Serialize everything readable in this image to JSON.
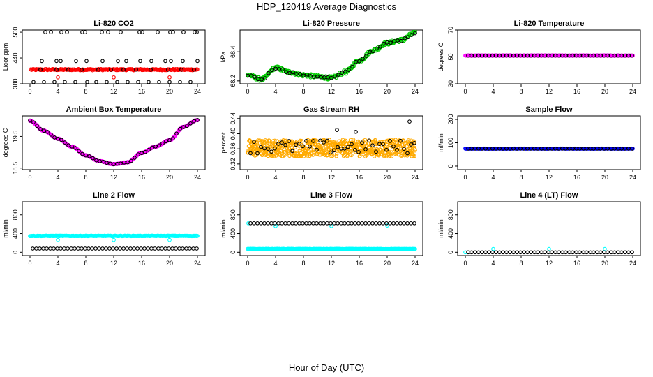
{
  "figure": {
    "title": "HDP_120419  Average Diagnostics",
    "xlabel": "Hour of Day (UTC)"
  },
  "chart_data": [
    {
      "type": "scatter",
      "title": "Li-820 CO2",
      "ylabel": "Licor ppm",
      "xlim": [
        0,
        24
      ],
      "ylim": [
        380,
        505
      ],
      "xticks": [
        0,
        4,
        8,
        12,
        16,
        20,
        24
      ],
      "xtick_labels": [
        "0",
        "4",
        "8",
        "12",
        "16",
        "20",
        "24"
      ],
      "yticks": [
        380,
        440,
        500
      ],
      "ytick_labels": [
        "380",
        "440",
        "500"
      ],
      "series": [
        {
          "color": "#ff0000",
          "kind": "band",
          "x_start": 0.1,
          "x_end": 24,
          "step": 0.12,
          "y": 413,
          "noise": 1.5
        },
        {
          "color": "#ff0000",
          "kind": "points",
          "x": [
            4,
            12,
            20
          ],
          "y": [
            395,
            395,
            395
          ]
        },
        {
          "color": "#000000",
          "kind": "points",
          "x": [
            0.5,
            2,
            3.5,
            5,
            6.5,
            8.2,
            9.5,
            11,
            12.5,
            14,
            15.5,
            17,
            18.5,
            20,
            21.5,
            23,
            1.5,
            3.8,
            5.5,
            7.4,
            9.8,
            11.6,
            13.4,
            15.2,
            17.3,
            19.8,
            21.7,
            23.5,
            2.2,
            3.0,
            4.5,
            5.3,
            7.5,
            7.9,
            10.3,
            11.2,
            13.0,
            15.7,
            16.1,
            18.3,
            20.1,
            20.5,
            22.0,
            23.6,
            23.9
          ],
          "y": [
            384,
            384,
            384,
            384,
            384,
            384,
            384,
            384,
            384,
            384,
            384,
            384,
            384,
            384,
            384,
            384,
            413,
            413,
            413,
            413,
            413,
            413,
            413,
            413,
            413,
            413,
            413,
            413,
            500,
            500,
            500,
            500,
            500,
            500,
            500,
            500,
            500,
            500,
            500,
            500,
            500,
            500,
            500,
            500,
            500
          ]
        },
        {
          "color": "#000000",
          "kind": "points",
          "x": [
            1.7,
            3.8,
            4.4,
            6.6,
            8.1,
            10.4,
            12.6,
            13.8,
            15.8,
            17.4,
            19.4,
            20.2,
            21.9,
            24
          ],
          "y": [
            433,
            433,
            433,
            433,
            433,
            433,
            433,
            433,
            433,
            433,
            433,
            433,
            433,
            433
          ]
        }
      ]
    },
    {
      "type": "scatter",
      "title": "Li-820 Pressure",
      "ylabel": "kPa",
      "xlim": [
        0,
        24
      ],
      "ylim": [
        68.18,
        68.55
      ],
      "xticks": [
        0,
        4,
        8,
        12,
        16,
        20,
        24
      ],
      "xtick_labels": [
        "0",
        "4",
        "8",
        "12",
        "16",
        "20",
        "24"
      ],
      "yticks": [
        68.2,
        68.4
      ],
      "ytick_labels": [
        "68.2",
        "68.4"
      ],
      "series": [
        {
          "color": "#00cc00",
          "kind": "curve",
          "knots_x": [
            0,
            2,
            4,
            6,
            8,
            10,
            12,
            14,
            16,
            18,
            20,
            22,
            24
          ],
          "knots_y": [
            68.24,
            68.21,
            68.29,
            68.26,
            68.24,
            68.23,
            68.22,
            68.26,
            68.34,
            68.41,
            68.46,
            68.48,
            68.53
          ],
          "step": 0.1,
          "noise": 0.012
        },
        {
          "color": "#000000",
          "kind": "curve",
          "knots_x": [
            0,
            2,
            4,
            6,
            8,
            10,
            12,
            14,
            16,
            18,
            20,
            22,
            24
          ],
          "knots_y": [
            68.24,
            68.21,
            68.29,
            68.26,
            68.24,
            68.23,
            68.22,
            68.26,
            68.34,
            68.41,
            68.46,
            68.48,
            68.53
          ],
          "step": 0.5,
          "noise": 0.006
        }
      ]
    },
    {
      "type": "scatter",
      "title": "Li-820 Temperature",
      "ylabel": "degrees C",
      "xlim": [
        0,
        24
      ],
      "ylim": [
        30,
        70
      ],
      "xticks": [
        0,
        4,
        8,
        12,
        16,
        20,
        24
      ],
      "xtick_labels": [
        "0",
        "4",
        "8",
        "12",
        "16",
        "20",
        "24"
      ],
      "yticks": [
        30,
        50,
        70
      ],
      "ytick_labels": [
        "30",
        "50",
        "70"
      ],
      "series": [
        {
          "color": "#ff00ff",
          "kind": "band",
          "x_start": 0,
          "x_end": 24,
          "step": 0.1,
          "y": 51,
          "noise": 0.1
        },
        {
          "color": "#000000",
          "kind": "band",
          "x_start": 0.4,
          "x_end": 24,
          "step": 0.5,
          "y": 51,
          "noise": 0
        }
      ]
    },
    {
      "type": "scatter",
      "title": "Ambient Box Temperature",
      "ylabel": "degrees C",
      "xlim": [
        0,
        24
      ],
      "ylim": [
        18.45,
        20.15
      ],
      "xticks": [
        0,
        4,
        8,
        12,
        16,
        20,
        24
      ],
      "xtick_labels": [
        "0",
        "4",
        "8",
        "12",
        "16",
        "20",
        "24"
      ],
      "yticks": [
        18.5,
        19.5
      ],
      "ytick_labels": [
        "18.5",
        "19.5"
      ],
      "series": [
        {
          "color": "#ff00ff",
          "kind": "curve",
          "knots_x": [
            0,
            2,
            4,
            6,
            8,
            10,
            12,
            14,
            16,
            18,
            20,
            22,
            24
          ],
          "knots_y": [
            20.0,
            19.68,
            19.43,
            19.18,
            18.9,
            18.72,
            18.62,
            18.68,
            18.98,
            19.18,
            19.38,
            19.8,
            20.02
          ],
          "step": 0.1,
          "noise": 0.01
        },
        {
          "color": "#000000",
          "kind": "curve",
          "knots_x": [
            0,
            2,
            4,
            6,
            8,
            10,
            12,
            14,
            16,
            18,
            20,
            22,
            24
          ],
          "knots_y": [
            20.0,
            19.68,
            19.43,
            19.18,
            18.9,
            18.72,
            18.62,
            18.68,
            18.98,
            19.18,
            19.38,
            19.8,
            20.02
          ],
          "step": 0.5,
          "noise": 0.005
        }
      ]
    },
    {
      "type": "scatter",
      "title": "Gas Stream RH",
      "ylabel": "percent",
      "xlim": [
        0,
        24
      ],
      "ylim": [
        0.305,
        0.447
      ],
      "xticks": [
        0,
        4,
        8,
        12,
        16,
        20,
        24
      ],
      "xtick_labels": [
        "0",
        "4",
        "8",
        "12",
        "16",
        "20",
        "24"
      ],
      "yticks": [
        0.32,
        0.36,
        0.4,
        0.44
      ],
      "ytick_labels": [
        "0.32",
        "0.36",
        "0.40",
        "0.44"
      ],
      "series": [
        {
          "color": "#ffaa00",
          "kind": "band",
          "x_start": 0,
          "x_end": 24,
          "step": 0.04,
          "y": 0.362,
          "noise": 0.022
        },
        {
          "color": "#000000",
          "kind": "band",
          "x_start": 0.4,
          "x_end": 24,
          "step": 0.5,
          "y": 0.365,
          "noise": 0.018
        },
        {
          "color": "#000000",
          "kind": "points",
          "x": [
            12.8,
            15.5,
            23.2
          ],
          "y": [
            0.41,
            0.405,
            0.432
          ]
        }
      ]
    },
    {
      "type": "scatter",
      "title": "Sample Flow",
      "ylabel": "ml/min",
      "xlim": [
        0,
        24
      ],
      "ylim": [
        -15,
        215
      ],
      "xticks": [
        0,
        4,
        8,
        12,
        16,
        20,
        24
      ],
      "xtick_labels": [
        "0",
        "4",
        "8",
        "12",
        "16",
        "20",
        "24"
      ],
      "yticks": [
        0,
        100,
        200
      ],
      "ytick_labels": [
        "0",
        "100",
        "200"
      ],
      "series": [
        {
          "color": "#0000ff",
          "kind": "band",
          "x_start": 0,
          "x_end": 24,
          "step": 0.1,
          "y": 75,
          "noise": 0.5
        },
        {
          "color": "#000000",
          "kind": "band",
          "x_start": 0.4,
          "x_end": 24,
          "step": 0.5,
          "y": 75,
          "noise": 0
        }
      ]
    },
    {
      "type": "scatter",
      "title": "Line 2 Flow",
      "ylabel": "ml/min",
      "xlim": [
        0,
        24
      ],
      "ylim": [
        -70,
        1080
      ],
      "xticks": [
        0,
        4,
        8,
        12,
        16,
        20,
        24
      ],
      "xtick_labels": [
        "0",
        "4",
        "8",
        "12",
        "16",
        "20",
        "24"
      ],
      "yticks": [
        0,
        400,
        800
      ],
      "ytick_labels": [
        "0",
        "400",
        "800"
      ],
      "series": [
        {
          "color": "#00ffff",
          "kind": "band",
          "x_start": 0,
          "x_end": 24,
          "step": 0.1,
          "y": 350,
          "noise": 6
        },
        {
          "color": "#00ffff",
          "kind": "points",
          "x": [
            4,
            12,
            20
          ],
          "y": [
            265,
            265,
            265
          ]
        },
        {
          "color": "#000000",
          "kind": "band",
          "x_start": 0.4,
          "x_end": 24,
          "step": 0.5,
          "y": 80,
          "noise": 0
        }
      ]
    },
    {
      "type": "scatter",
      "title": "Line 3 Flow",
      "ylabel": "ml/min",
      "xlim": [
        0,
        24
      ],
      "ylim": [
        -70,
        1080
      ],
      "xticks": [
        0,
        4,
        8,
        12,
        16,
        20,
        24
      ],
      "xtick_labels": [
        "0",
        "4",
        "8",
        "12",
        "16",
        "20",
        "24"
      ],
      "yticks": [
        0,
        400,
        800
      ],
      "ytick_labels": [
        "0",
        "400",
        "800"
      ],
      "series": [
        {
          "color": "#00ffff",
          "kind": "band",
          "x_start": 0,
          "x_end": 24,
          "step": 0.1,
          "y": 70,
          "noise": 3
        },
        {
          "color": "#00ffff",
          "kind": "points",
          "x": [
            0.1,
            4,
            12,
            20
          ],
          "y": [
            620,
            560,
            560,
            570
          ]
        },
        {
          "color": "#000000",
          "kind": "band",
          "x_start": 0.4,
          "x_end": 24,
          "step": 0.5,
          "y": 620,
          "noise": 0
        }
      ]
    },
    {
      "type": "scatter",
      "title": "Line 4 (LT) Flow",
      "ylabel": "ml/min",
      "xlim": [
        0,
        24
      ],
      "ylim": [
        -70,
        1080
      ],
      "xticks": [
        0,
        4,
        8,
        12,
        16,
        20,
        24
      ],
      "xtick_labels": [
        "0",
        "4",
        "8",
        "12",
        "16",
        "20",
        "24"
      ],
      "yticks": [
        0,
        400,
        800
      ],
      "ytick_labels": [
        "0",
        "400",
        "800"
      ],
      "series": [
        {
          "color": "#00ffff",
          "kind": "points",
          "x": [
            0,
            4,
            12,
            20
          ],
          "y": [
            0,
            70,
            70,
            70
          ]
        },
        {
          "color": "#000000",
          "kind": "band",
          "x_start": 0.4,
          "x_end": 24,
          "step": 0.5,
          "y": 0,
          "noise": 0
        }
      ]
    }
  ]
}
